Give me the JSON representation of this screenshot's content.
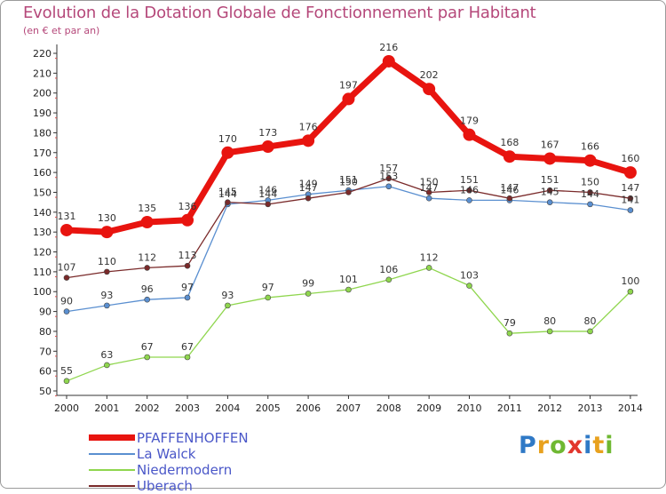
{
  "title": "Evolution de la Dotation Globale de Fonctionnement par Habitant",
  "subtitle": "(en € et par an)",
  "logo": {
    "letters": [
      {
        "ch": "P",
        "color": "#2f79c6"
      },
      {
        "ch": "r",
        "color": "#e8a11e"
      },
      {
        "ch": "o",
        "color": "#6fb832"
      },
      {
        "ch": "x",
        "color": "#e2362d"
      },
      {
        "ch": "i",
        "color": "#2f79c6"
      },
      {
        "ch": "t",
        "color": "#e8a11e"
      },
      {
        "ch": "i",
        "color": "#6fb832"
      }
    ]
  },
  "chart_data": {
    "type": "line",
    "title": "Evolution de la Dotation Globale de Fonctionnement par Habitant",
    "subtitle": "(en € et par an)",
    "x": [
      "2000",
      "2001",
      "2002",
      "2003",
      "2004",
      "2005",
      "2006",
      "2007",
      "2008",
      "2009",
      "2010",
      "2011",
      "2012",
      "2013",
      "2014"
    ],
    "ylim": [
      50,
      220
    ],
    "yticks": [
      50,
      60,
      70,
      80,
      90,
      100,
      110,
      120,
      130,
      140,
      150,
      160,
      170,
      180,
      190,
      200,
      210,
      220
    ],
    "grid": false,
    "legend": "bottom-left",
    "series": [
      {
        "name": "PFAFFENHOFFEN",
        "color": "#e8140f",
        "stroke": 7,
        "marker": 7,
        "values": [
          131,
          130,
          135,
          136,
          170,
          173,
          176,
          197,
          216,
          202,
          179,
          168,
          167,
          166,
          160
        ],
        "labels": [
          "131",
          "130",
          "135",
          "136",
          "170",
          "173",
          "176",
          "197",
          "216",
          "202",
          "179",
          "168",
          "167",
          "166",
          "160"
        ]
      },
      {
        "name": "La Walck",
        "color": "#5a8fd0",
        "stroke": 1.3,
        "marker": 3,
        "values": [
          90,
          93,
          96,
          97,
          144,
          146,
          149,
          151,
          153,
          147,
          146,
          146,
          145,
          144,
          141
        ],
        "labels": [
          "90",
          "93",
          "96",
          "97",
          "144",
          "146",
          "149",
          "151",
          "153",
          "147",
          "146",
          "146",
          "145",
          "144",
          "141"
        ]
      },
      {
        "name": "Niedermodern",
        "color": "#8fd64e",
        "stroke": 1.3,
        "marker": 3,
        "values": [
          55,
          63,
          67,
          67,
          93,
          97,
          99,
          101,
          106,
          112,
          103,
          79,
          80,
          80,
          100
        ],
        "labels": [
          "55",
          "63",
          "67",
          "67",
          "93",
          "97",
          "99",
          "101",
          "106",
          "112",
          "103",
          "79",
          "80",
          "80",
          "100"
        ]
      },
      {
        "name": "Uberach",
        "color": "#7a2a2a",
        "stroke": 1.3,
        "marker": 3,
        "values": [
          107,
          110,
          112,
          113,
          145,
          144,
          147,
          150,
          157,
          150,
          151,
          147,
          151,
          150,
          147
        ],
        "labels": [
          "107",
          "110",
          "112",
          "113",
          "145",
          "144",
          "147",
          "150",
          "157",
          "150",
          "151",
          "147",
          "151",
          "150",
          "147"
        ]
      }
    ]
  }
}
